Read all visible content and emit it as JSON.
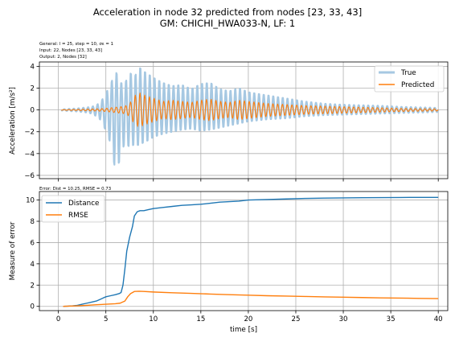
{
  "figure": {
    "title_line1": "Acceleration in node 32 predicted from nodes [23, 33, 43]",
    "title_line2": "GM: CHICHI_HWA033-N, LF: 1"
  },
  "colors": {
    "true": "#a6c8e2",
    "predicted": "#ff7f0e",
    "distance": "#1f77b4",
    "rmse": "#ff7f0e"
  },
  "chart_data": [
    {
      "type": "line",
      "notes": [
        "General: l = 25, step = 10, σε = 1",
        "Input: 22, Nodes [23, 33, 43]",
        "Output: 2, Nodes [32]"
      ],
      "xlabel": "",
      "ylabel": "Acceleration [m/s²]",
      "xlim": [
        -2,
        41
      ],
      "ylim": [
        -6.3,
        4.4
      ],
      "xticks": [
        0,
        5,
        10,
        15,
        20,
        25,
        30,
        35,
        40
      ],
      "yticks": [
        -6,
        -4,
        -2,
        0,
        2,
        4
      ],
      "grid": true,
      "legend_position": "top-right",
      "series": [
        {
          "name": "True",
          "envelope": {
            "t": [
              0.3,
              1,
              2,
              3,
              3.5,
              4,
              4.5,
              5,
              5.5,
              6,
              6.5,
              7,
              7.5,
              8,
              8.5,
              9,
              9.5,
              10,
              11,
              12,
              13,
              14,
              15,
              16,
              17,
              18,
              19,
              20,
              22,
              24,
              26,
              28,
              30,
              32,
              34,
              36,
              38,
              40
            ],
            "up": [
              0.05,
              0.1,
              0.15,
              0.25,
              0.3,
              0.45,
              0.8,
              1.6,
              2.4,
              3.8,
              2.6,
              2.5,
              3.6,
              3.1,
              4.1,
              3.7,
              3.4,
              3.1,
              2.6,
              2.3,
              2.4,
              2.0,
              2.5,
              2.6,
              2.0,
              1.8,
              2.1,
              1.7,
              1.4,
              1.1,
              0.8,
              0.6,
              0.5,
              0.45,
              0.4,
              0.3,
              0.25,
              0.2
            ],
            "down": [
              0.05,
              0.1,
              0.15,
              0.25,
              0.35,
              0.6,
              1.0,
              2.0,
              3.2,
              5.8,
              4.8,
              3.0,
              3.6,
              3.3,
              3.4,
              3.1,
              2.9,
              2.6,
              2.3,
              2.1,
              1.9,
              1.8,
              2.0,
              1.9,
              1.7,
              1.5,
              1.3,
              1.1,
              0.9,
              0.8,
              0.6,
              0.5,
              0.45,
              0.4,
              0.35,
              0.3,
              0.25,
              0.2
            ],
            "period": 0.5
          }
        },
        {
          "name": "Predicted",
          "envelope": {
            "t": [
              0.3,
              2,
              3,
              4,
              5,
              6,
              7,
              7.5,
              8,
              8.5,
              9,
              10,
              11,
              12,
              13,
              14,
              15,
              16,
              17,
              18,
              19,
              20,
              22,
              24,
              26,
              28,
              30,
              32,
              34,
              36,
              38,
              40
            ],
            "amp": [
              0.02,
              0.05,
              0.08,
              0.1,
              0.15,
              0.25,
              0.35,
              0.6,
              1.3,
              1.6,
              1.4,
              1.1,
              0.8,
              0.9,
              0.8,
              0.7,
              0.9,
              1.0,
              0.8,
              0.7,
              0.9,
              0.8,
              0.6,
              0.5,
              0.4,
              0.35,
              0.3,
              0.25,
              0.2,
              0.15,
              0.12,
              0.1
            ],
            "period": 0.5
          }
        }
      ]
    },
    {
      "type": "line",
      "notes": [
        "Error: Dist = 10.25, RMSE = 0.73"
      ],
      "xlabel": "time [s]",
      "ylabel": "Measure of error",
      "xlim": [
        -2,
        41
      ],
      "ylim": [
        -0.4,
        10.8
      ],
      "xticks": [
        0,
        5,
        10,
        15,
        20,
        25,
        30,
        35,
        40
      ],
      "yticks": [
        0,
        2,
        4,
        6,
        8,
        10
      ],
      "grid": true,
      "legend_position": "top-left",
      "series": [
        {
          "name": "Distance",
          "x": [
            0.5,
            1,
            1.5,
            2,
            2.5,
            3,
            3.5,
            4,
            4.5,
            5,
            5.5,
            6,
            6.4,
            6.6,
            6.8,
            7,
            7.2,
            7.5,
            7.8,
            8,
            8.3,
            8.6,
            9,
            9.5,
            10,
            11,
            12,
            13,
            14,
            15,
            16,
            17,
            18,
            19,
            20,
            22,
            24,
            26,
            28,
            30,
            32,
            34,
            36,
            38,
            40
          ],
          "y": [
            0.0,
            0.02,
            0.05,
            0.1,
            0.2,
            0.3,
            0.4,
            0.5,
            0.7,
            0.9,
            1.0,
            1.1,
            1.2,
            1.3,
            2.0,
            3.5,
            5.2,
            6.5,
            7.5,
            8.5,
            8.9,
            9.0,
            9.0,
            9.1,
            9.2,
            9.3,
            9.4,
            9.5,
            9.55,
            9.6,
            9.7,
            9.8,
            9.85,
            9.9,
            10.0,
            10.05,
            10.1,
            10.15,
            10.18,
            10.2,
            10.22,
            10.23,
            10.24,
            10.25,
            10.25
          ]
        },
        {
          "name": "RMSE",
          "x": [
            0.5,
            1,
            2,
            3,
            4,
            5,
            6,
            6.5,
            7,
            7.3,
            7.6,
            8,
            8.5,
            9,
            10,
            12,
            14,
            16,
            18,
            20,
            22,
            24,
            26,
            28,
            30,
            32,
            34,
            36,
            38,
            40
          ],
          "y": [
            0.0,
            0.02,
            0.05,
            0.1,
            0.15,
            0.2,
            0.25,
            0.3,
            0.5,
            0.9,
            1.2,
            1.4,
            1.42,
            1.4,
            1.35,
            1.28,
            1.22,
            1.16,
            1.1,
            1.05,
            1.0,
            0.97,
            0.93,
            0.89,
            0.86,
            0.83,
            0.8,
            0.78,
            0.75,
            0.73
          ]
        }
      ]
    }
  ]
}
